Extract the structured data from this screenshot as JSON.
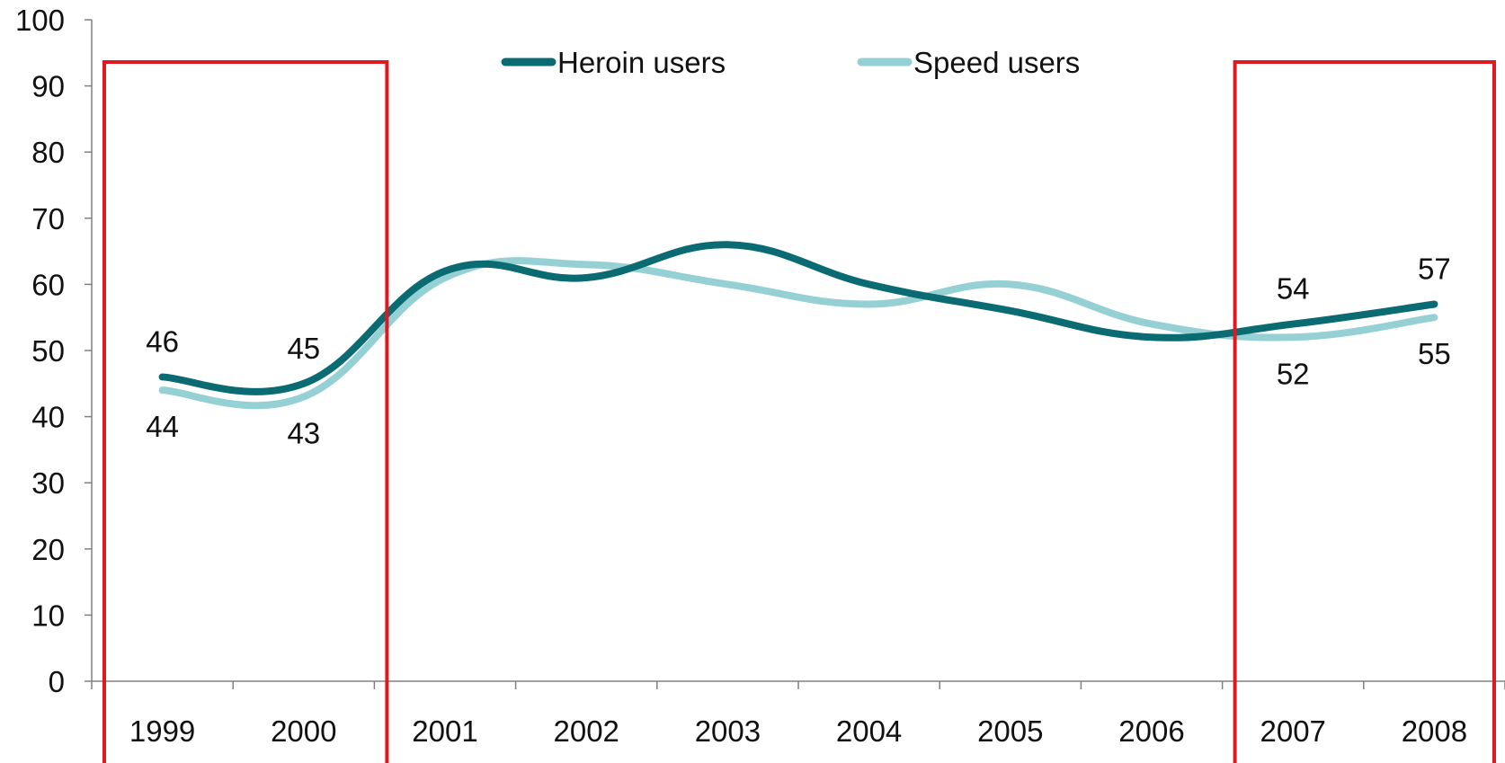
{
  "chart_data": {
    "type": "line",
    "categories": [
      "1999",
      "2000",
      "2001",
      "2002",
      "2003",
      "2004",
      "2005",
      "2006",
      "2007",
      "2008"
    ],
    "series": [
      {
        "name": "Heroin users",
        "color": "#0a6b72",
        "values": [
          46,
          45,
          62,
          61,
          66,
          60,
          56,
          52,
          54,
          57
        ]
      },
      {
        "name": "Speed users",
        "color": "#95d0d4",
        "values": [
          44,
          43,
          61,
          63,
          60,
          57,
          60,
          54,
          52,
          55
        ]
      }
    ],
    "data_labels": [
      {
        "series": 0,
        "index": 0,
        "text": "46",
        "placement": "above"
      },
      {
        "series": 1,
        "index": 0,
        "text": "44",
        "placement": "below"
      },
      {
        "series": 0,
        "index": 1,
        "text": "45",
        "placement": "above"
      },
      {
        "series": 1,
        "index": 1,
        "text": "43",
        "placement": "below"
      },
      {
        "series": 0,
        "index": 8,
        "text": "54",
        "placement": "above"
      },
      {
        "series": 1,
        "index": 8,
        "text": "52",
        "placement": "below"
      },
      {
        "series": 0,
        "index": 9,
        "text": "57",
        "placement": "above"
      },
      {
        "series": 1,
        "index": 9,
        "text": "55",
        "placement": "below"
      }
    ],
    "yticks": [
      "0",
      "10",
      "20",
      "30",
      "40",
      "50",
      "60",
      "70",
      "80",
      "90",
      "100"
    ],
    "ylim": [
      0,
      100
    ],
    "title": "",
    "xlabel": "",
    "ylabel": "",
    "grid": false,
    "legend": "top-center",
    "highlight_boxes": [
      {
        "from": "1999",
        "to": "2000",
        "color": "#e0191e"
      },
      {
        "from": "2007",
        "to": "2008",
        "color": "#e0191e"
      }
    ]
  }
}
